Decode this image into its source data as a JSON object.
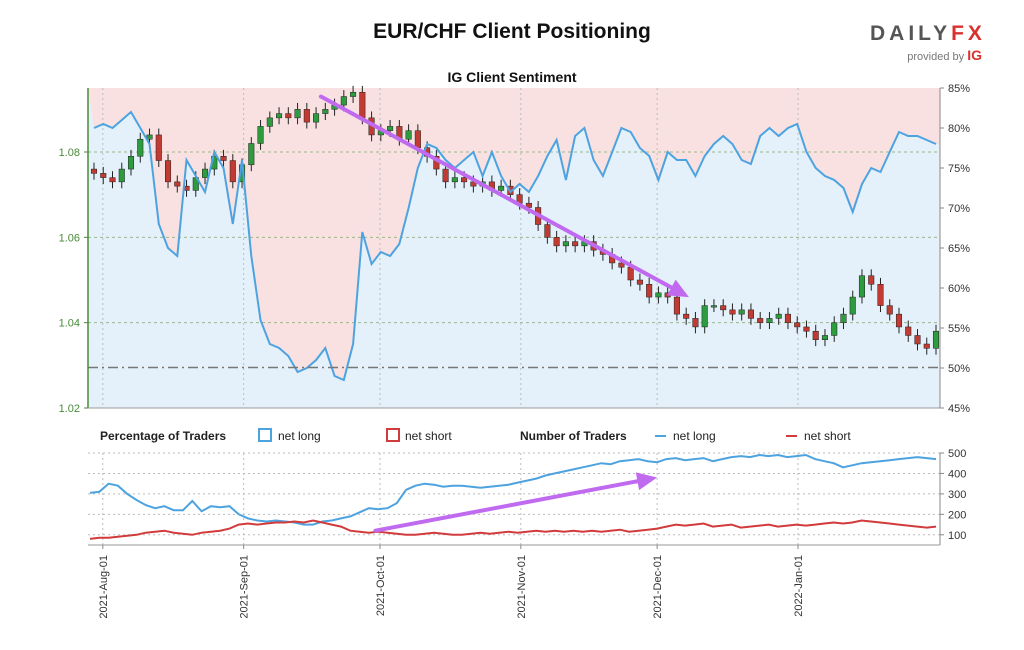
{
  "header": {
    "title": "EUR/CHF Client Positioning",
    "logo_text_main": "DAILY",
    "logo_text_fx": "FX",
    "logo_provided": "provided by",
    "logo_ig": "IG"
  },
  "legend": {
    "percentage_label": "Percentage of Traders",
    "net_long": "net long",
    "net_short": "net short",
    "number_label": "Number of Traders",
    "net_long_2": "net long",
    "net_short_2": "net short"
  },
  "colors": {
    "long": "#4da3e0",
    "short": "#d23b3b",
    "arrow": "#c06af0",
    "bg_short": "#f9e1e1",
    "bg_long": "#e4f0fa",
    "price_axis": "#4a8a3a"
  },
  "chart_data": [
    {
      "type": "candlestick",
      "title": "IG Client Sentiment",
      "x_ticks": [
        "2021-Aug-01",
        "2021-Sep-01",
        "2021-Oct-01",
        "2021-Nov-01",
        "2021-Dec-01",
        "2022-Jan-01"
      ],
      "y_left_ticks": [
        "1.02",
        "1.04",
        "1.06",
        "1.08"
      ],
      "y_left_range": [
        1.02,
        1.095
      ],
      "y_right_ticks": [
        "45%",
        "50%",
        "55%",
        "60%",
        "65%",
        "70%",
        "75%",
        "80%",
        "85%"
      ],
      "y_right_range": [
        45,
        85
      ],
      "price_close": [
        1.075,
        1.074,
        1.073,
        1.076,
        1.079,
        1.083,
        1.084,
        1.078,
        1.073,
        1.072,
        1.071,
        1.074,
        1.076,
        1.079,
        1.078,
        1.073,
        1.077,
        1.082,
        1.086,
        1.088,
        1.089,
        1.088,
        1.09,
        1.087,
        1.089,
        1.09,
        1.091,
        1.093,
        1.094,
        1.088,
        1.084,
        1.085,
        1.086,
        1.083,
        1.085,
        1.081,
        1.079,
        1.076,
        1.073,
        1.074,
        1.073,
        1.072,
        1.073,
        1.071,
        1.072,
        1.07,
        1.068,
        1.067,
        1.063,
        1.06,
        1.058,
        1.059,
        1.058,
        1.059,
        1.057,
        1.056,
        1.054,
        1.053,
        1.05,
        1.049,
        1.046,
        1.047,
        1.046,
        1.042,
        1.041,
        1.039,
        1.044,
        1.044,
        1.043,
        1.042,
        1.043,
        1.041,
        1.04,
        1.041,
        1.042,
        1.04,
        1.039,
        1.038,
        1.036,
        1.037,
        1.04,
        1.042,
        1.046,
        1.051,
        1.049,
        1.044,
        1.042,
        1.039,
        1.037,
        1.035,
        1.034,
        1.038
      ],
      "pct_long": [
        80.0,
        80.5,
        80.0,
        81.0,
        82.0,
        80.0,
        78.0,
        68.0,
        65.0,
        64.0,
        76.0,
        74.0,
        72.0,
        77.0,
        75.0,
        68.0,
        76.0,
        64.0,
        56.0,
        53.0,
        52.5,
        51.5,
        49.5,
        50.0,
        51.0,
        52.5,
        49.0,
        48.5,
        53.0,
        67.0,
        63.0,
        64.5,
        64.0,
        65.5,
        70.0,
        75.0,
        78.0,
        77.5,
        76.0,
        75.0,
        76.0,
        77.0,
        74.0,
        77.0,
        74.0,
        72.0,
        73.0,
        72.0,
        74.0,
        76.5,
        78.5,
        73.5,
        79.0,
        80.0,
        76.0,
        74.0,
        77.0,
        80.0,
        79.5,
        77.5,
        76.5,
        73.5,
        77.0,
        76.0,
        76.0,
        74.0,
        76.5,
        78.0,
        79.0,
        78.0,
        76.0,
        75.5,
        79.0,
        80.0,
        79.0,
        80.0,
        80.5,
        77.0,
        75.0,
        74.0,
        73.5,
        72.5,
        69.5,
        73.0,
        75.0,
        74.5,
        77.0,
        79.5,
        79.0,
        79.0,
        78.5,
        78.0
      ],
      "reference_price": 1.0295,
      "arrow": {
        "from": [
          "2021-Sep-18",
          1.093
        ],
        "to": [
          "2021-Dec-08",
          1.046
        ]
      }
    },
    {
      "type": "line",
      "x_ticks": [
        "2021-Aug-01",
        "2021-Sep-01",
        "2021-Oct-01",
        "2021-Nov-01",
        "2021-Dec-01",
        "2022-Jan-01"
      ],
      "y_ticks": [
        "100",
        "200",
        "300",
        "400",
        "500"
      ],
      "y_range": [
        50,
        500
      ],
      "series": [
        {
          "name": "net long",
          "values": [
            305,
            310,
            350,
            340,
            300,
            270,
            245,
            230,
            240,
            220,
            220,
            265,
            215,
            240,
            235,
            240,
            200,
            180,
            170,
            165,
            170,
            165,
            160,
            150,
            150,
            165,
            170,
            180,
            190,
            210,
            230,
            225,
            230,
            255,
            320,
            340,
            350,
            345,
            335,
            340,
            340,
            335,
            330,
            335,
            340,
            345,
            355,
            365,
            375,
            390,
            400,
            410,
            420,
            430,
            440,
            450,
            445,
            460,
            465,
            470,
            460,
            455,
            470,
            475,
            465,
            470,
            475,
            460,
            470,
            480,
            485,
            480,
            490,
            485,
            490,
            480,
            485,
            490,
            470,
            460,
            450,
            430,
            440,
            450,
            455,
            460,
            465,
            470,
            475,
            480,
            475,
            470
          ]
        },
        {
          "name": "net short",
          "values": [
            80,
            85,
            85,
            90,
            95,
            100,
            110,
            115,
            120,
            110,
            105,
            100,
            110,
            115,
            120,
            130,
            150,
            155,
            150,
            155,
            160,
            160,
            165,
            160,
            170,
            160,
            150,
            140,
            120,
            115,
            110,
            115,
            110,
            105,
            100,
            100,
            105,
            110,
            105,
            100,
            100,
            105,
            110,
            105,
            110,
            115,
            110,
            115,
            120,
            115,
            120,
            115,
            120,
            115,
            120,
            115,
            120,
            125,
            115,
            120,
            125,
            130,
            140,
            150,
            145,
            150,
            155,
            140,
            145,
            150,
            135,
            140,
            145,
            150,
            140,
            145,
            150,
            145,
            150,
            155,
            160,
            155,
            160,
            170,
            165,
            160,
            155,
            150,
            145,
            140,
            135,
            140
          ]
        }
      ],
      "arrow": {
        "from": [
          "2021-Sep-30",
          120
        ],
        "to": [
          "2021-Dec-01",
          380
        ]
      }
    }
  ]
}
